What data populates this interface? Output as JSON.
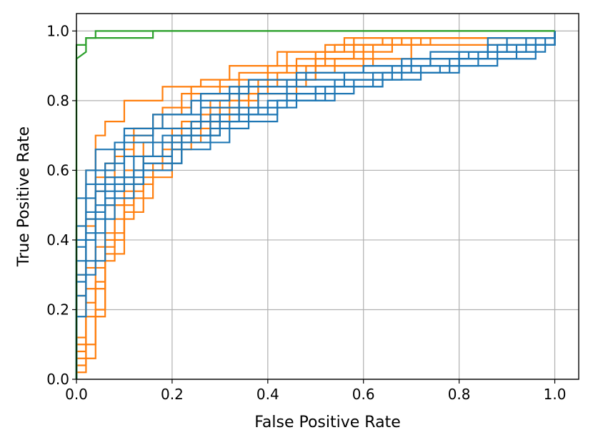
{
  "chart_data": {
    "type": "line",
    "title": "",
    "xlabel": "False Positive Rate",
    "ylabel": "True Positive Rate",
    "xlim": [
      0.0,
      1.05
    ],
    "ylim": [
      0.0,
      1.05
    ],
    "grid": true,
    "legend": "none",
    "xticks": [
      "0.0",
      "0.2",
      "0.4",
      "0.6",
      "0.8",
      "1.0"
    ],
    "yticks": [
      "0.0",
      "0.2",
      "0.4",
      "0.6",
      "0.8",
      "1.0"
    ],
    "colors": {
      "blue": "#1f77b4",
      "orange": "#ff7f0e",
      "green": "#2ca02c"
    },
    "series": [
      {
        "color": "#2ca02c",
        "x": [
          0.0,
          0.0,
          0.02,
          0.02,
          0.04,
          0.04,
          0.08,
          0.08,
          1.0
        ],
        "y": [
          0.0,
          0.92,
          0.94,
          0.98,
          0.98,
          1.0,
          1.0,
          1.0,
          1.0
        ]
      },
      {
        "color": "#2ca02c",
        "x": [
          0.0,
          0.0,
          0.02,
          0.02,
          0.06,
          0.06,
          0.16,
          0.16,
          1.0
        ],
        "y": [
          0.0,
          0.96,
          0.96,
          0.98,
          0.98,
          0.98,
          0.98,
          1.0,
          1.0
        ]
      },
      {
        "color": "#1f77b4",
        "x": [
          0.0,
          0.0,
          0.02,
          0.02,
          0.06,
          0.06,
          0.1,
          0.1,
          0.16,
          0.16,
          0.24,
          0.24,
          0.32,
          0.32,
          0.44,
          0.44,
          0.56,
          0.56,
          0.7,
          0.7,
          0.86,
          0.86,
          1.0,
          1.0
        ],
        "y": [
          0.0,
          0.38,
          0.38,
          0.56,
          0.56,
          0.62,
          0.62,
          0.7,
          0.7,
          0.76,
          0.76,
          0.8,
          0.8,
          0.84,
          0.84,
          0.86,
          0.86,
          0.88,
          0.88,
          0.92,
          0.92,
          0.96,
          0.96,
          1.0
        ]
      },
      {
        "color": "#1f77b4",
        "x": [
          0.0,
          0.0,
          0.04,
          0.04,
          0.08,
          0.08,
          0.14,
          0.14,
          0.2,
          0.2,
          0.3,
          0.3,
          0.4,
          0.4,
          0.5,
          0.5,
          0.64,
          0.64,
          0.78,
          0.78,
          0.92,
          0.92,
          1.0,
          1.0
        ],
        "y": [
          0.0,
          0.3,
          0.3,
          0.5,
          0.5,
          0.58,
          0.58,
          0.64,
          0.64,
          0.7,
          0.7,
          0.76,
          0.76,
          0.8,
          0.8,
          0.84,
          0.84,
          0.88,
          0.88,
          0.92,
          0.92,
          0.96,
          0.96,
          1.0
        ]
      },
      {
        "color": "#1f77b4",
        "x": [
          0.0,
          0.0,
          0.02,
          0.02,
          0.04,
          0.04,
          0.1,
          0.1,
          0.18,
          0.18,
          0.26,
          0.26,
          0.36,
          0.36,
          0.48,
          0.48,
          0.6,
          0.6,
          0.74,
          0.74,
          0.9,
          0.9,
          1.0,
          1.0
        ],
        "y": [
          0.0,
          0.44,
          0.44,
          0.6,
          0.6,
          0.66,
          0.66,
          0.72,
          0.72,
          0.76,
          0.76,
          0.82,
          0.82,
          0.86,
          0.86,
          0.88,
          0.88,
          0.9,
          0.9,
          0.94,
          0.94,
          0.98,
          0.98,
          1.0
        ]
      },
      {
        "color": "#1f77b4",
        "x": [
          0.0,
          0.0,
          0.06,
          0.06,
          0.12,
          0.12,
          0.2,
          0.2,
          0.28,
          0.28,
          0.36,
          0.36,
          0.46,
          0.46,
          0.58,
          0.58,
          0.72,
          0.72,
          0.84,
          0.84,
          0.96,
          0.96,
          1.0,
          1.0
        ],
        "y": [
          0.0,
          0.34,
          0.34,
          0.52,
          0.52,
          0.6,
          0.6,
          0.66,
          0.66,
          0.72,
          0.72,
          0.78,
          0.78,
          0.82,
          0.82,
          0.86,
          0.86,
          0.9,
          0.9,
          0.94,
          0.94,
          0.96,
          0.96,
          1.0
        ]
      },
      {
        "color": "#1f77b4",
        "x": [
          0.0,
          0.0,
          0.02,
          0.02,
          0.08,
          0.08,
          0.14,
          0.14,
          0.22,
          0.22,
          0.32,
          0.32,
          0.42,
          0.42,
          0.54,
          0.54,
          0.66,
          0.66,
          0.8,
          0.8,
          0.94,
          0.94,
          1.0,
          1.0
        ],
        "y": [
          0.0,
          0.24,
          0.24,
          0.46,
          0.46,
          0.56,
          0.56,
          0.62,
          0.62,
          0.68,
          0.68,
          0.74,
          0.74,
          0.8,
          0.8,
          0.86,
          0.86,
          0.9,
          0.9,
          0.94,
          0.94,
          0.98,
          0.98,
          1.0
        ]
      },
      {
        "color": "#1f77b4",
        "x": [
          0.0,
          0.0,
          0.04,
          0.04,
          0.1,
          0.1,
          0.16,
          0.16,
          0.24,
          0.24,
          0.34,
          0.34,
          0.44,
          0.44,
          0.56,
          0.56,
          0.68,
          0.68,
          0.82,
          0.82,
          0.98,
          0.98,
          1.0,
          1.0
        ],
        "y": [
          0.0,
          0.4,
          0.4,
          0.54,
          0.54,
          0.64,
          0.64,
          0.68,
          0.68,
          0.74,
          0.74,
          0.78,
          0.78,
          0.84,
          0.84,
          0.86,
          0.86,
          0.92,
          0.92,
          0.94,
          0.94,
          0.98,
          0.98,
          1.0
        ]
      },
      {
        "color": "#1f77b4",
        "x": [
          0.0,
          0.0,
          0.02,
          0.02,
          0.06,
          0.06,
          0.12,
          0.12,
          0.18,
          0.18,
          0.28,
          0.28,
          0.38,
          0.38,
          0.5,
          0.5,
          0.62,
          0.62,
          0.76,
          0.76,
          0.88,
          0.88,
          1.0,
          1.0
        ],
        "y": [
          0.0,
          0.18,
          0.18,
          0.48,
          0.48,
          0.58,
          0.58,
          0.64,
          0.64,
          0.7,
          0.7,
          0.76,
          0.76,
          0.82,
          0.82,
          0.84,
          0.84,
          0.88,
          0.88,
          0.9,
          0.9,
          0.96,
          0.96,
          1.0
        ]
      },
      {
        "color": "#1f77b4",
        "x": [
          0.0,
          0.0,
          0.04,
          0.04,
          0.08,
          0.08,
          0.16,
          0.16,
          0.26,
          0.26,
          0.34,
          0.34,
          0.46,
          0.46,
          0.6,
          0.6,
          0.74,
          0.74,
          0.86,
          0.86,
          1.0,
          1.0
        ],
        "y": [
          0.0,
          0.52,
          0.52,
          0.6,
          0.6,
          0.68,
          0.68,
          0.72,
          0.72,
          0.78,
          0.78,
          0.84,
          0.84,
          0.88,
          0.88,
          0.9,
          0.9,
          0.92,
          0.92,
          0.98,
          0.98,
          1.0
        ]
      },
      {
        "color": "#1f77b4",
        "x": [
          0.0,
          0.0,
          0.02,
          0.02,
          0.06,
          0.06,
          0.14,
          0.14,
          0.22,
          0.22,
          0.3,
          0.3,
          0.42,
          0.42,
          0.52,
          0.52,
          0.64,
          0.64,
          0.8,
          0.8,
          0.96,
          0.96,
          1.0,
          1.0
        ],
        "y": [
          0.0,
          0.28,
          0.28,
          0.42,
          0.42,
          0.56,
          0.56,
          0.62,
          0.62,
          0.7,
          0.7,
          0.76,
          0.76,
          0.8,
          0.8,
          0.84,
          0.84,
          0.88,
          0.88,
          0.92,
          0.92,
          0.98,
          0.98,
          1.0
        ]
      },
      {
        "color": "#ff7f0e",
        "x": [
          0.0,
          0.0,
          0.02,
          0.02,
          0.04,
          0.04,
          0.06,
          0.06,
          0.1,
          0.1,
          0.14,
          0.14,
          0.2,
          0.2,
          0.28,
          0.28,
          0.36,
          0.36,
          0.46,
          0.46,
          0.58,
          0.58,
          1.0,
          1.0
        ],
        "y": [
          0.0,
          0.04,
          0.04,
          0.1,
          0.1,
          0.28,
          0.28,
          0.42,
          0.42,
          0.54,
          0.54,
          0.64,
          0.64,
          0.72,
          0.72,
          0.8,
          0.8,
          0.86,
          0.86,
          0.92,
          0.92,
          0.98,
          0.98,
          1.0
        ]
      },
      {
        "color": "#ff7f0e",
        "x": [
          0.0,
          0.0,
          0.02,
          0.02,
          0.06,
          0.06,
          0.08,
          0.08,
          0.12,
          0.12,
          0.16,
          0.16,
          0.22,
          0.22,
          0.3,
          0.3,
          0.38,
          0.38,
          0.48,
          0.48,
          0.62,
          0.62,
          1.0,
          1.0
        ],
        "y": [
          0.0,
          0.02,
          0.02,
          0.18,
          0.18,
          0.34,
          0.34,
          0.46,
          0.46,
          0.56,
          0.56,
          0.62,
          0.62,
          0.7,
          0.7,
          0.78,
          0.78,
          0.84,
          0.84,
          0.9,
          0.9,
          0.96,
          0.96,
          1.0
        ]
      },
      {
        "color": "#ff7f0e",
        "x": [
          0.0,
          0.0,
          0.02,
          0.02,
          0.04,
          0.04,
          0.08,
          0.08,
          0.12,
          0.12,
          0.18,
          0.18,
          0.24,
          0.24,
          0.32,
          0.32,
          0.4,
          0.4,
          0.5,
          0.5,
          0.66,
          0.66,
          1.0,
          1.0
        ],
        "y": [
          0.0,
          0.12,
          0.12,
          0.22,
          0.22,
          0.38,
          0.38,
          0.5,
          0.5,
          0.6,
          0.6,
          0.66,
          0.66,
          0.74,
          0.74,
          0.82,
          0.82,
          0.86,
          0.86,
          0.94,
          0.94,
          0.98,
          0.98,
          1.0
        ]
      },
      {
        "color": "#ff7f0e",
        "x": [
          0.0,
          0.0,
          0.04,
          0.04,
          0.06,
          0.06,
          0.1,
          0.1,
          0.14,
          0.14,
          0.2,
          0.2,
          0.26,
          0.26,
          0.34,
          0.34,
          0.42,
          0.42,
          0.54,
          0.54,
          0.7,
          0.7,
          1.0,
          1.0
        ],
        "y": [
          0.0,
          0.06,
          0.06,
          0.2,
          0.2,
          0.36,
          0.36,
          0.48,
          0.48,
          0.58,
          0.58,
          0.68,
          0.68,
          0.76,
          0.76,
          0.84,
          0.84,
          0.88,
          0.88,
          0.92,
          0.92,
          0.98,
          0.98,
          1.0
        ]
      },
      {
        "color": "#ff7f0e",
        "x": [
          0.0,
          0.0,
          0.02,
          0.02,
          0.04,
          0.04,
          0.06,
          0.06,
          0.08,
          0.08,
          0.12,
          0.12,
          0.18,
          0.18,
          0.24,
          0.24,
          0.34,
          0.34,
          0.44,
          0.44,
          0.56,
          0.56,
          1.0,
          1.0
        ],
        "y": [
          0.0,
          0.3,
          0.3,
          0.44,
          0.44,
          0.54,
          0.54,
          0.62,
          0.62,
          0.66,
          0.66,
          0.72,
          0.72,
          0.78,
          0.78,
          0.84,
          0.84,
          0.88,
          0.88,
          0.94,
          0.94,
          0.98,
          0.98,
          1.0
        ]
      },
      {
        "color": "#ff7f0e",
        "x": [
          0.0,
          0.0,
          0.02,
          0.02,
          0.06,
          0.06,
          0.1,
          0.1,
          0.16,
          0.16,
          0.2,
          0.2,
          0.28,
          0.28,
          0.36,
          0.36,
          0.46,
          0.46,
          0.6,
          0.6,
          0.72,
          0.72,
          1.0,
          1.0
        ],
        "y": [
          0.0,
          0.1,
          0.1,
          0.26,
          0.26,
          0.4,
          0.4,
          0.52,
          0.52,
          0.6,
          0.6,
          0.7,
          0.7,
          0.78,
          0.78,
          0.82,
          0.82,
          0.9,
          0.9,
          0.96,
          0.96,
          0.98,
          0.98,
          1.0
        ]
      },
      {
        "color": "#ff7f0e",
        "x": [
          0.0,
          0.0,
          0.02,
          0.02,
          0.04,
          0.04,
          0.08,
          0.08,
          0.12,
          0.12,
          0.16,
          0.16,
          0.22,
          0.22,
          0.3,
          0.3,
          0.4,
          0.4,
          0.52,
          0.52,
          0.64,
          0.64,
          1.0,
          1.0
        ],
        "y": [
          0.0,
          0.24,
          0.24,
          0.46,
          0.46,
          0.58,
          0.58,
          0.64,
          0.64,
          0.7,
          0.7,
          0.76,
          0.76,
          0.82,
          0.82,
          0.86,
          0.86,
          0.9,
          0.9,
          0.96,
          0.96,
          0.98,
          0.98,
          1.0
        ]
      },
      {
        "color": "#ff7f0e",
        "x": [
          0.0,
          0.0,
          0.02,
          0.02,
          0.06,
          0.06,
          0.1,
          0.1,
          0.14,
          0.14,
          0.22,
          0.22,
          0.3,
          0.3,
          0.38,
          0.38,
          0.5,
          0.5,
          0.58,
          0.58,
          0.74,
          0.74,
          1.0,
          1.0
        ],
        "y": [
          0.0,
          0.08,
          0.08,
          0.32,
          0.32,
          0.5,
          0.5,
          0.6,
          0.6,
          0.68,
          0.68,
          0.74,
          0.74,
          0.8,
          0.8,
          0.86,
          0.86,
          0.92,
          0.92,
          0.96,
          0.96,
          0.98,
          0.98,
          1.0
        ]
      },
      {
        "color": "#ff7f0e",
        "x": [
          0.0,
          0.0,
          0.02,
          0.02,
          0.04,
          0.04,
          0.06,
          0.06,
          0.1,
          0.1,
          0.18,
          0.18,
          0.26,
          0.26,
          0.32,
          0.32,
          0.42,
          0.42,
          0.54,
          0.54,
          0.68,
          0.68,
          1.0,
          1.0
        ],
        "y": [
          0.0,
          0.44,
          0.44,
          0.6,
          0.6,
          0.7,
          0.7,
          0.74,
          0.74,
          0.8,
          0.8,
          0.84,
          0.84,
          0.86,
          0.86,
          0.9,
          0.9,
          0.94,
          0.94,
          0.96,
          0.96,
          0.98,
          0.98,
          1.0
        ]
      }
    ]
  }
}
